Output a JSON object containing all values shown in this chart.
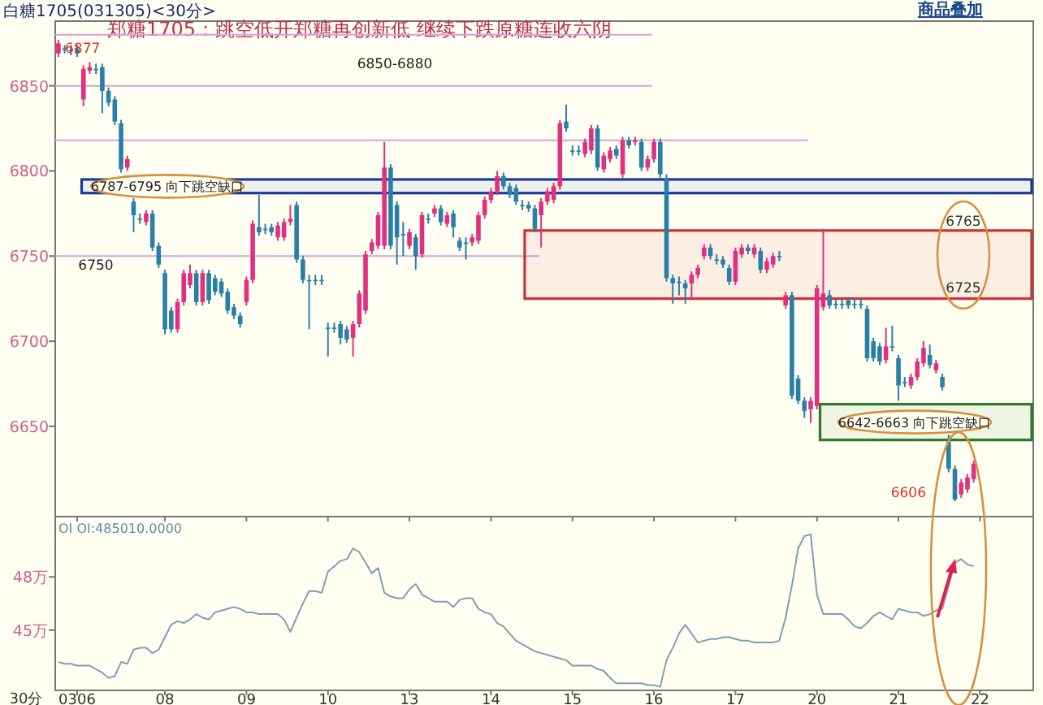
{
  "chart_data": [
    {
      "type": "candlestick",
      "title": "郑糖1705：跳空低开郑糖再创新低 继续下跌原糖连收六阴",
      "subtitle": "白糖1705(031305)<30分>",
      "categories": [
        null,
        null,
        null,
        "0306",
        null,
        null,
        null,
        null,
        null,
        null,
        null,
        null,
        null,
        null,
        null,
        null,
        null,
        "08",
        null,
        null,
        null,
        null,
        null,
        null,
        null,
        null,
        null,
        null,
        null,
        null,
        "09",
        null,
        null,
        null,
        null,
        null,
        null,
        null,
        null,
        null,
        null,
        null,
        null,
        "10",
        null,
        null,
        null,
        null,
        null,
        null,
        null,
        null,
        null,
        null,
        null,
        null,
        "13",
        null,
        null,
        null,
        null,
        null,
        null,
        null,
        null,
        null,
        null,
        null,
        null,
        "14",
        null,
        null,
        null,
        null,
        null,
        null,
        null,
        null,
        null,
        null,
        null,
        null,
        "15",
        null,
        null,
        null,
        null,
        null,
        null,
        null,
        null,
        null,
        null,
        null,
        null,
        "16",
        null,
        null,
        null,
        null,
        null,
        null,
        null,
        null,
        null,
        null,
        null,
        null,
        "17",
        null,
        null,
        null,
        null,
        null,
        null,
        null,
        null,
        null,
        null,
        null,
        null,
        "20",
        null,
        null,
        null,
        null,
        null,
        null,
        null,
        null,
        null,
        null,
        null,
        null,
        "21",
        null,
        null,
        null,
        null,
        null,
        null,
        null,
        null,
        null,
        null,
        null,
        null,
        "22",
        null,
        null,
        null,
        null,
        null,
        null,
        null,
        null
      ],
      "ohlc": [
        [
          6869,
          6877,
          6867,
          6875
        ],
        [
          6872,
          6874,
          6869,
          6871
        ],
        [
          6871,
          6874,
          6868,
          6871
        ],
        [
          6872,
          6874,
          6867,
          6869
        ],
        [
          6842,
          6862,
          6838,
          6860
        ],
        [
          6859,
          6864,
          6857,
          6861
        ],
        [
          6860,
          6863,
          6857,
          6860
        ],
        [
          6861,
          6863,
          6834,
          6847
        ],
        [
          6847,
          6849,
          6838,
          6840
        ],
        [
          6842,
          6844,
          6827,
          6829
        ],
        [
          6828,
          6830,
          6799,
          6801
        ],
        [
          6802,
          6809,
          6800,
          6807
        ],
        [
          6782,
          6784,
          6764,
          6774
        ],
        [
          6772,
          6775,
          6769,
          6772
        ],
        [
          6770,
          6777,
          6768,
          6775
        ],
        [
          6775,
          6777,
          6753,
          6755
        ],
        [
          6756,
          6758,
          6743,
          6745
        ],
        [
          6740,
          6742,
          6704,
          6707
        ],
        [
          6718,
          6720,
          6705,
          6707
        ],
        [
          6707,
          6725,
          6705,
          6723
        ],
        [
          6723,
          6742,
          6721,
          6740
        ],
        [
          6733,
          6745,
          6731,
          6740
        ],
        [
          6740,
          6742,
          6721,
          6723
        ],
        [
          6723,
          6742,
          6721,
          6740
        ],
        [
          6740,
          6742,
          6722,
          6724
        ],
        [
          6737,
          6739,
          6727,
          6729
        ],
        [
          6735,
          6737,
          6726,
          6728
        ],
        [
          6729,
          6731,
          6716,
          6718
        ],
        [
          6720,
          6722,
          6713,
          6715
        ],
        [
          6715,
          6717,
          6708,
          6710
        ],
        [
          6723,
          6738,
          6721,
          6736
        ],
        [
          6736,
          6771,
          6734,
          6769
        ],
        [
          6767,
          6786,
          6762,
          6764
        ],
        [
          6766,
          6769,
          6763,
          6766
        ],
        [
          6767,
          6769,
          6762,
          6764
        ],
        [
          6761,
          6770,
          6759,
          6768
        ],
        [
          6761,
          6772,
          6759,
          6770
        ],
        [
          6770,
          6780,
          6768,
          6772
        ],
        [
          6780,
          6782,
          6746,
          6748
        ],
        [
          6748,
          6750,
          6734,
          6736
        ],
        [
          6736,
          6739,
          6707,
          6736
        ],
        [
          6736,
          6739,
          6733,
          6736
        ],
        [
          6736,
          6739,
          6733,
          6736
        ],
        [
          6708,
          6711,
          6691,
          6708
        ],
        [
          6708,
          6711,
          6705,
          6708
        ],
        [
          6710,
          6712,
          6698,
          6702
        ],
        [
          6707,
          6709,
          6699,
          6701
        ],
        [
          6702,
          6712,
          6691,
          6710
        ],
        [
          6710,
          6730,
          6708,
          6728
        ],
        [
          6718,
          6753,
          6716,
          6751
        ],
        [
          6753,
          6760,
          6751,
          6758
        ],
        [
          6756,
          6776,
          6754,
          6774
        ],
        [
          6756,
          6817,
          6754,
          6802
        ],
        [
          6802,
          6804,
          6754,
          6756
        ],
        [
          6780,
          6782,
          6745,
          6761
        ],
        [
          6763,
          6770,
          6750,
          6763
        ],
        [
          6756,
          6766,
          6754,
          6764
        ],
        [
          6761,
          6763,
          6742,
          6750
        ],
        [
          6751,
          6776,
          6749,
          6774
        ],
        [
          6772,
          6775,
          6769,
          6772
        ],
        [
          6775,
          6780,
          6773,
          6778
        ],
        [
          6778,
          6780,
          6768,
          6770
        ],
        [
          6769,
          6776,
          6767,
          6774
        ],
        [
          6775,
          6777,
          6761,
          6767
        ],
        [
          6759,
          6761,
          6753,
          6755
        ],
        [
          6758,
          6761,
          6748,
          6758
        ],
        [
          6758,
          6763,
          6756,
          6761
        ],
        [
          6759,
          6776,
          6757,
          6774
        ],
        [
          6774,
          6785,
          6772,
          6783
        ],
        [
          6783,
          6790,
          6781,
          6788
        ],
        [
          6788,
          6800,
          6786,
          6797
        ],
        [
          6797,
          6799,
          6789,
          6791
        ],
        [
          6791,
          6793,
          6784,
          6786
        ],
        [
          6790,
          6792,
          6780,
          6782
        ],
        [
          6780,
          6783,
          6777,
          6780
        ],
        [
          6780,
          6782,
          6776,
          6778
        ],
        [
          6778,
          6780,
          6764,
          6766
        ],
        [
          6774,
          6784,
          6755,
          6782
        ],
        [
          6782,
          6790,
          6780,
          6788
        ],
        [
          6783,
          6793,
          6781,
          6791
        ],
        [
          6791,
          6830,
          6789,
          6828
        ],
        [
          6829,
          6839,
          6823,
          6825
        ],
        [
          6812,
          6815,
          6809,
          6812
        ],
        [
          6812,
          6815,
          6809,
          6812
        ],
        [
          6810,
          6819,
          6808,
          6817
        ],
        [
          6812,
          6827,
          6810,
          6825
        ],
        [
          6825,
          6827,
          6800,
          6802
        ],
        [
          6801,
          6811,
          6799,
          6809
        ],
        [
          6807,
          6814,
          6805,
          6812
        ],
        [
          6813,
          6815,
          6807,
          6809
        ],
        [
          6798,
          6820,
          6796,
          6818
        ],
        [
          6818,
          6820,
          6813,
          6815
        ],
        [
          6817,
          6820,
          6815,
          6818
        ],
        [
          6817,
          6819,
          6800,
          6802
        ],
        [
          6802,
          6809,
          6800,
          6807
        ],
        [
          6807,
          6819,
          6805,
          6817
        ],
        [
          6817,
          6819,
          6796,
          6798
        ],
        [
          6796,
          6798,
          6735,
          6737
        ],
        [
          6737,
          6739,
          6722,
          6734
        ],
        [
          6735,
          6738,
          6727,
          6735
        ],
        [
          6734,
          6736,
          6722,
          6731
        ],
        [
          6734,
          6741,
          6725,
          6739
        ],
        [
          6739,
          6745,
          6737,
          6743
        ],
        [
          6750,
          6757,
          6748,
          6755
        ],
        [
          6755,
          6757,
          6748,
          6750
        ],
        [
          6748,
          6751,
          6745,
          6748
        ],
        [
          6748,
          6750,
          6743,
          6745
        ],
        [
          6743,
          6745,
          6733,
          6735
        ],
        [
          6735,
          6755,
          6733,
          6753
        ],
        [
          6751,
          6757,
          6749,
          6755
        ],
        [
          6755,
          6757,
          6751,
          6753
        ],
        [
          6751,
          6757,
          6749,
          6755
        ],
        [
          6753,
          6755,
          6740,
          6742
        ],
        [
          6742,
          6749,
          6740,
          6747
        ],
        [
          6745,
          6752,
          6743,
          6750
        ],
        [
          6750,
          6753,
          6747,
          6750
        ],
        [
          6721,
          6729,
          6719,
          6727
        ],
        [
          6727,
          6729,
          6666,
          6668
        ],
        [
          6678,
          6680,
          6663,
          6665
        ],
        [
          6665,
          6667,
          6655,
          6659
        ],
        [
          6660,
          6667,
          6652,
          6665
        ],
        [
          6662,
          6733,
          6660,
          6731
        ],
        [
          6720,
          6766,
          6718,
          6728
        ],
        [
          6727,
          6730,
          6719,
          6721
        ],
        [
          6722,
          6725,
          6719,
          6722
        ],
        [
          6722,
          6725,
          6719,
          6722
        ],
        [
          6724,
          6726,
          6719,
          6721
        ],
        [
          6722,
          6725,
          6719,
          6722
        ],
        [
          6722,
          6725,
          6719,
          6722
        ],
        [
          6719,
          6721,
          6688,
          6690
        ],
        [
          6700,
          6702,
          6688,
          6690
        ],
        [
          6697,
          6699,
          6686,
          6688
        ],
        [
          6689,
          6708,
          6687,
          6697
        ],
        [
          6697,
          6709,
          6694,
          6697
        ],
        [
          6690,
          6692,
          6665,
          6674
        ],
        [
          6676,
          6679,
          6673,
          6676
        ],
        [
          6674,
          6681,
          6672,
          6679
        ],
        [
          6679,
          6690,
          6677,
          6688
        ],
        [
          6687,
          6700,
          6685,
          6696
        ],
        [
          6692,
          6698,
          6684,
          6686
        ],
        [
          6683,
          6689,
          6681,
          6687
        ],
        [
          6679,
          6681,
          6671,
          6673
        ],
        [
          6641,
          6645,
          6623,
          6625
        ],
        [
          6625,
          6627,
          6606,
          6607
        ],
        [
          6610,
          6619,
          6608,
          6617
        ],
        [
          6613,
          6622,
          6611,
          6620
        ],
        [
          6619,
          6630,
          6617,
          6628
        ],
        null,
        null,
        null,
        null,
        null,
        null,
        null,
        null,
        null
      ],
      "colors": [
        "#e0307f",
        "#2a7fa8",
        "#2a7fa8",
        "#2a7fa8",
        "#e0307f",
        "#e0307f",
        "#2a7fa8",
        "#2a7fa8",
        "#2a7fa8",
        "#2a7fa8",
        "#2a7fa8",
        "#e0307f",
        "#2a7fa8",
        "#2a7fa8",
        "#e0307f",
        "#2a7fa8",
        "#2a7fa8",
        "#2a7fa8",
        "#2a7fa8",
        "#e0307f",
        "#e0307f",
        "#e0307f",
        "#2a7fa8",
        "#e0307f",
        "#2a7fa8",
        "#2a7fa8",
        "#2a7fa8",
        "#2a7fa8",
        "#2a7fa8",
        "#2a7fa8",
        "#e0307f",
        "#e0307f",
        "#2a7fa8",
        "#2a7fa8",
        "#2a7fa8",
        "#e0307f",
        "#e0307f",
        "#e0307f",
        "#2a7fa8",
        "#2a7fa8",
        "#2a7fa8",
        "#2a7fa8",
        "#2a7fa8",
        "#2a7fa8",
        "#2a7fa8",
        "#2a7fa8",
        "#2a7fa8",
        "#e0307f",
        "#e0307f",
        "#e0307f",
        "#e0307f",
        "#e0307f",
        "#e0307f",
        "#2a7fa8",
        "#2a7fa8",
        "#2a7fa8",
        "#e0307f",
        "#2a7fa8",
        "#e0307f",
        "#2a7fa8",
        "#e0307f",
        "#2a7fa8",
        "#e0307f",
        "#2a7fa8",
        "#2a7fa8",
        "#2a7fa8",
        "#e0307f",
        "#e0307f",
        "#e0307f",
        "#e0307f",
        "#e0307f",
        "#2a7fa8",
        "#2a7fa8",
        "#2a7fa8",
        "#2a7fa8",
        "#2a7fa8",
        "#2a7fa8",
        "#e0307f",
        "#e0307f",
        "#e0307f",
        "#e0307f",
        "#2a7fa8",
        "#2a7fa8",
        "#2a7fa8",
        "#e0307f",
        "#e0307f",
        "#2a7fa8",
        "#e0307f",
        "#e0307f",
        "#2a7fa8",
        "#e0307f",
        "#2a7fa8",
        "#e0307f",
        "#2a7fa8",
        "#e0307f",
        "#e0307f",
        "#2a7fa8",
        "#2a7fa8",
        "#2a7fa8",
        "#2a7fa8",
        "#2a7fa8",
        "#e0307f",
        "#e0307f",
        "#e0307f",
        "#2a7fa8",
        "#2a7fa8",
        "#2a7fa8",
        "#2a7fa8",
        "#e0307f",
        "#e0307f",
        "#2a7fa8",
        "#e0307f",
        "#2a7fa8",
        "#e0307f",
        "#e0307f",
        "#2a7fa8",
        "#e0307f",
        "#2a7fa8",
        "#2a7fa8",
        "#2a7fa8",
        "#e0307f",
        "#e0307f",
        "#e0307f",
        "#2a7fa8",
        "#2a7fa8",
        "#2a7fa8",
        "#2a7fa8",
        "#2a7fa8",
        "#2a7fa8",
        "#2a7fa8",
        "#2a7fa8",
        "#2a7fa8",
        "#e0307f",
        "#2a7fa8",
        "#2a7fa8",
        "#2a7fa8",
        "#e0307f",
        "#e0307f",
        "#e0307f",
        "#2a7fa8",
        "#e0307f",
        "#2a7fa8",
        "#2a7fa8",
        "#2a7fa8",
        "#e0307f",
        "#e0307f",
        "#e0307f",
        null,
        null,
        null,
        null,
        null,
        null,
        null,
        null,
        null
      ],
      "ylim": [
        6597,
        6888
      ],
      "yticks": [
        6650,
        6700,
        6750,
        6800,
        6850
      ],
      "tick_labels": "y",
      "ref_lines": [
        {
          "axis": "y",
          "value": 6880,
          "color": "#d9a0d8"
        },
        {
          "axis": "y",
          "value": 6850,
          "color": "#d9a0d8"
        },
        {
          "axis": "y",
          "value": 6818,
          "color": "#d9a0d8"
        },
        {
          "axis": "y",
          "value": 6750,
          "color": "#d9a0d8"
        }
      ],
      "bands": [
        {
          "axis": "y",
          "from": 6787,
          "to": 6795,
          "label": "6787-6795 向下跳空缺口",
          "color": "#1a3a9a"
        },
        {
          "axis": "y",
          "from": 6725,
          "to": 6765,
          "color": "#d03030"
        },
        {
          "axis": "y",
          "from": 6642,
          "to": 6663,
          "label": "6642-6663 向下跳空缺口",
          "color": "#2a7a2a"
        }
      ],
      "annotations": [
        "商品叠加",
        "6850-6880",
        "6750",
        {
          "text": "6877",
          "y": 6877
        },
        "6765",
        "6725",
        "6606"
      ]
    },
    {
      "type": "line",
      "xlabel": "30分",
      "categories": [
        null,
        null,
        null,
        "0306",
        null,
        null,
        null,
        null,
        null,
        null,
        null,
        null,
        null,
        null,
        null,
        null,
        null,
        "08",
        null,
        null,
        null,
        null,
        null,
        null,
        null,
        null,
        null,
        null,
        null,
        null,
        "09",
        null,
        null,
        null,
        null,
        null,
        null,
        null,
        null,
        null,
        null,
        null,
        null,
        "10",
        null,
        null,
        null,
        null,
        null,
        null,
        null,
        null,
        null,
        null,
        null,
        null,
        "13",
        null,
        null,
        null,
        null,
        null,
        null,
        null,
        null,
        null,
        null,
        null,
        null,
        "14",
        null,
        null,
        null,
        null,
        null,
        null,
        null,
        null,
        null,
        null,
        null,
        null,
        "15",
        null,
        null,
        null,
        null,
        null,
        null,
        null,
        null,
        null,
        null,
        null,
        null,
        "16",
        null,
        null,
        null,
        null,
        null,
        null,
        null,
        null,
        null,
        null,
        null,
        null,
        "17",
        null,
        null,
        null,
        null,
        null,
        null,
        null,
        null,
        null,
        null,
        null,
        null,
        "20",
        null,
        null,
        null,
        null,
        null,
        null,
        null,
        null,
        null,
        null,
        null,
        null,
        "21",
        null,
        null,
        null,
        null,
        null,
        null,
        null,
        null,
        null,
        null,
        null,
        null,
        "22",
        null,
        null,
        null,
        null,
        null,
        null,
        null,
        null
      ],
      "series": [
        {
          "color": "#7f9fb5",
          "values": [
            43.2,
            43.1,
            43.1,
            43.0,
            43.0,
            43.0,
            42.8,
            42.6,
            42.3,
            42.4,
            43.2,
            43.1,
            43.9,
            44.0,
            44.0,
            43.7,
            43.9,
            44.6,
            45.3,
            45.5,
            45.4,
            45.6,
            45.9,
            45.7,
            45.6,
            46.0,
            46.1,
            46.2,
            46.3,
            46.2,
            46.0,
            46.0,
            45.9,
            45.9,
            45.9,
            45.9,
            45.6,
            44.9,
            45.7,
            46.5,
            47.2,
            47.2,
            47.1,
            48.3,
            48.6,
            48.9,
            49.0,
            49.6,
            49.4,
            48.8,
            48.2,
            48.5,
            47.1,
            46.9,
            46.8,
            46.8,
            47.3,
            47.6,
            47.0,
            46.8,
            46.6,
            46.6,
            46.6,
            46.3,
            46.7,
            46.8,
            46.8,
            46.2,
            46.0,
            45.9,
            45.4,
            45.2,
            44.8,
            44.4,
            44.2,
            44.0,
            43.8,
            43.7,
            43.6,
            43.5,
            43.4,
            43.3,
            43.0,
            43.0,
            43.0,
            43.0,
            42.8,
            42.7,
            42.3,
            42.0,
            42.0,
            42.0,
            42.0,
            42.0,
            41.9,
            41.9,
            41.8,
            43.3,
            44.0,
            44.8,
            45.3,
            44.8,
            44.3,
            44.4,
            44.5,
            44.5,
            44.6,
            44.6,
            44.5,
            44.4,
            44.4,
            44.3,
            44.3,
            44.3,
            44.3,
            44.4,
            45.7,
            47.5,
            49.6,
            50.3,
            50.4,
            47.0,
            45.9,
            45.9,
            45.9,
            45.9,
            45.6,
            45.2,
            45.1,
            45.4,
            45.8,
            46.0,
            45.8,
            45.6,
            46.2,
            46.1,
            46.0,
            46.0,
            45.8,
            45.9,
            46.1,
            46.2,
            47.5,
            48.8,
            49.0,
            48.7,
            48.6,
            null,
            null,
            null,
            null,
            null,
            null,
            null,
            null,
            null
          ]
        }
      ],
      "ylim": [
        41.6,
        51.4
      ],
      "yticks": [
        {
          "value": 45,
          "label": "45万"
        },
        {
          "value": 48,
          "label": "48万"
        }
      ],
      "annotations": [
        "OI OI:485010.0000"
      ]
    }
  ]
}
